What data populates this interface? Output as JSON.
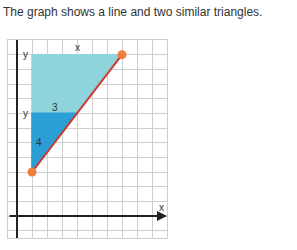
{
  "chart_data": {
    "type": "scatter",
    "title": "The graph shows a line and two similar triangles.",
    "x_label": "x",
    "triangles": [
      {
        "x": [
          1,
          1,
          7
        ],
        "y": [
          3,
          11,
          11
        ],
        "color": "#8fd3dc"
      },
      {
        "x": [
          1,
          1,
          4
        ],
        "y": [
          3,
          7,
          7
        ],
        "color": "#2a9fd6"
      }
    ],
    "line": {
      "x": [
        1,
        7
      ],
      "y": [
        3,
        11
      ],
      "color": "#d0392b",
      "marker": "circle",
      "marker_color": "#f07f3c"
    },
    "annotations": [
      {
        "text": "x",
        "x": 4,
        "y": 11.5
      },
      {
        "text": "y",
        "x": 0.55,
        "y": 11
      },
      {
        "text": "y",
        "x": 0.55,
        "y": 7
      },
      {
        "text": "3",
        "x": 2.5,
        "y": 7.4
      },
      {
        "text": "4",
        "x": 1.45,
        "y": 5
      }
    ],
    "xlim": [
      -0.6,
      10
    ],
    "ylim": [
      -1.5,
      12
    ],
    "xticks": [
      0,
      1,
      2,
      3,
      4,
      5,
      6,
      7,
      8,
      9,
      10
    ],
    "yticks": [
      -1,
      0,
      1,
      2,
      3,
      4,
      5,
      6,
      7,
      8,
      9,
      10,
      11,
      12
    ],
    "grid": true,
    "tick_labels": false
  }
}
